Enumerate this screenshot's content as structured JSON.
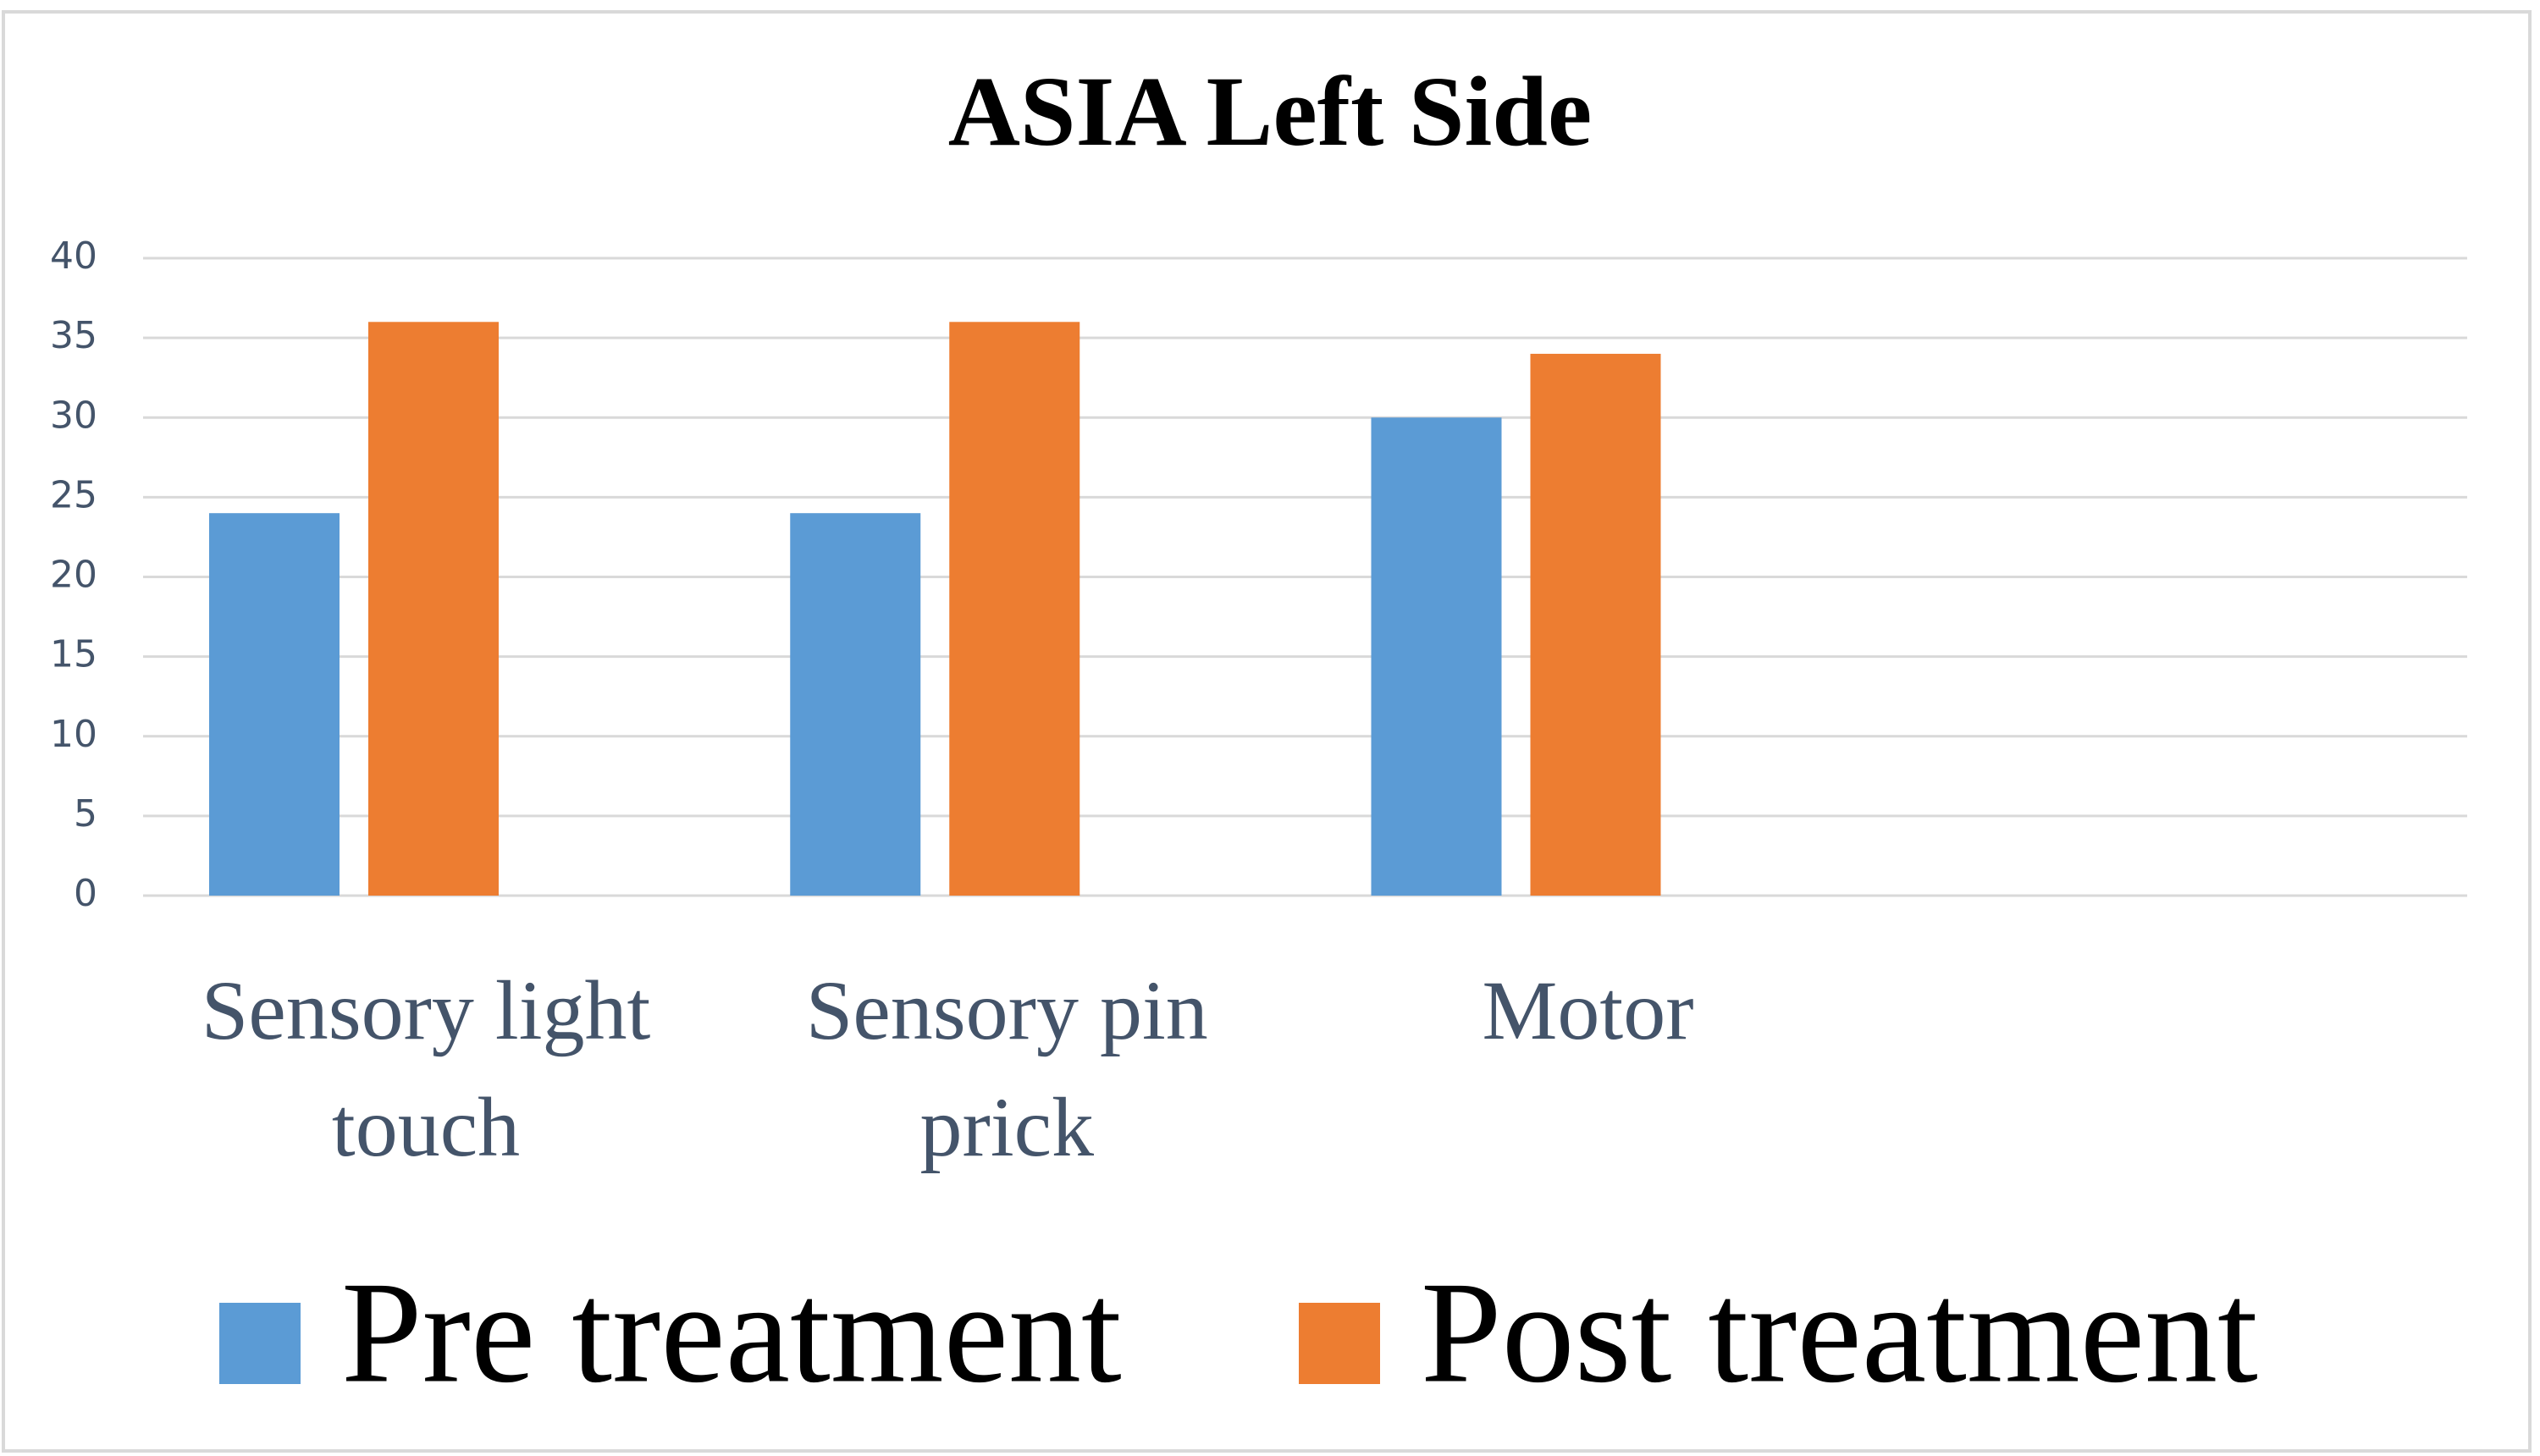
{
  "chart_data": {
    "type": "bar",
    "title": "ASIA Left Side",
    "categories": [
      "Sensory light touch",
      "Sensory pin prick",
      "Motor",
      null
    ],
    "series": [
      {
        "name": "Pre treatment",
        "color": "#5b9bd5",
        "values": [
          24,
          24,
          30,
          null
        ]
      },
      {
        "name": "Post treatment",
        "color": "#ed7d31",
        "values": [
          36,
          36,
          34,
          null
        ]
      }
    ],
    "ylim": [
      0,
      40
    ],
    "yticks": [
      0,
      5,
      10,
      15,
      20,
      25,
      30,
      35,
      40
    ],
    "grid": true,
    "legend": "bottom"
  }
}
